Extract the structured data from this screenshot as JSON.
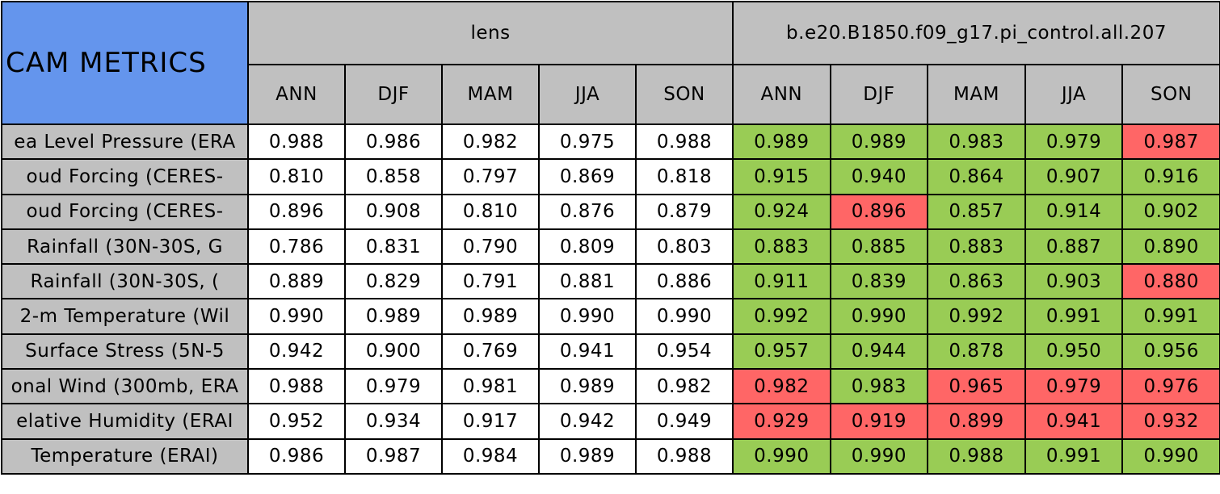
{
  "table": {
    "corner": "CAM METRICS",
    "groups": [
      "lens",
      "b.e20.B1850.f09_g17.pi_control.all.207"
    ],
    "seasons": [
      [
        "ANN",
        "DJF",
        "MAM",
        "JJA",
        "SON"
      ],
      [
        "ANN",
        "DJF",
        "MAM",
        "JJA",
        "SON"
      ]
    ],
    "colors": {
      "header": "#c0c0c0",
      "corner": "#6495ed",
      "label": "#c0c0c0",
      "plain": "#ffffff",
      "good": "#99cc55",
      "bad": "#ff6666"
    },
    "rows": [
      {
        "label": "ea Level Pressure (ERA",
        "cells": [
          "0.988",
          "0.986",
          "0.982",
          "0.975",
          "0.988",
          "0.989",
          "0.989",
          "0.983",
          "0.979",
          "0.987"
        ],
        "status": [
          "plain",
          "plain",
          "plain",
          "plain",
          "plain",
          "good",
          "good",
          "good",
          "good",
          "bad"
        ]
      },
      {
        "label": "oud Forcing (CERES-",
        "cells": [
          "0.810",
          "0.858",
          "0.797",
          "0.869",
          "0.818",
          "0.915",
          "0.940",
          "0.864",
          "0.907",
          "0.916"
        ],
        "status": [
          "plain",
          "plain",
          "plain",
          "plain",
          "plain",
          "good",
          "good",
          "good",
          "good",
          "good"
        ]
      },
      {
        "label": "oud Forcing (CERES-",
        "cells": [
          "0.896",
          "0.908",
          "0.810",
          "0.876",
          "0.879",
          "0.924",
          "0.896",
          "0.857",
          "0.914",
          "0.902"
        ],
        "status": [
          "plain",
          "plain",
          "plain",
          "plain",
          "plain",
          "good",
          "bad",
          "good",
          "good",
          "good"
        ]
      },
      {
        "label": "Rainfall (30N-30S, G",
        "cells": [
          "0.786",
          "0.831",
          "0.790",
          "0.809",
          "0.803",
          "0.883",
          "0.885",
          "0.883",
          "0.887",
          "0.890"
        ],
        "status": [
          "plain",
          "plain",
          "plain",
          "plain",
          "plain",
          "good",
          "good",
          "good",
          "good",
          "good"
        ]
      },
      {
        "label": "Rainfall (30N-30S, (",
        "cells": [
          "0.889",
          "0.829",
          "0.791",
          "0.881",
          "0.886",
          "0.911",
          "0.839",
          "0.863",
          "0.903",
          "0.880"
        ],
        "status": [
          "plain",
          "plain",
          "plain",
          "plain",
          "plain",
          "good",
          "good",
          "good",
          "good",
          "bad"
        ]
      },
      {
        "label": "2-m Temperature (Wil",
        "cells": [
          "0.990",
          "0.989",
          "0.989",
          "0.990",
          "0.990",
          "0.992",
          "0.990",
          "0.992",
          "0.991",
          "0.991"
        ],
        "status": [
          "plain",
          "plain",
          "plain",
          "plain",
          "plain",
          "good",
          "good",
          "good",
          "good",
          "good"
        ]
      },
      {
        "label": "Surface Stress (5N-5",
        "cells": [
          "0.942",
          "0.900",
          "0.769",
          "0.941",
          "0.954",
          "0.957",
          "0.944",
          "0.878",
          "0.950",
          "0.956"
        ],
        "status": [
          "plain",
          "plain",
          "plain",
          "plain",
          "plain",
          "good",
          "good",
          "good",
          "good",
          "good"
        ]
      },
      {
        "label": "onal Wind (300mb, ERA",
        "cells": [
          "0.988",
          "0.979",
          "0.981",
          "0.989",
          "0.982",
          "0.982",
          "0.983",
          "0.965",
          "0.979",
          "0.976"
        ],
        "status": [
          "plain",
          "plain",
          "plain",
          "plain",
          "plain",
          "bad",
          "good",
          "bad",
          "bad",
          "bad"
        ]
      },
      {
        "label": "elative Humidity (ERAI",
        "cells": [
          "0.952",
          "0.934",
          "0.917",
          "0.942",
          "0.949",
          "0.929",
          "0.919",
          "0.899",
          "0.941",
          "0.932"
        ],
        "status": [
          "plain",
          "plain",
          "plain",
          "plain",
          "plain",
          "bad",
          "bad",
          "bad",
          "bad",
          "bad"
        ]
      },
      {
        "label": "Temperature (ERAI)",
        "cells": [
          "0.986",
          "0.987",
          "0.984",
          "0.989",
          "0.988",
          "0.990",
          "0.990",
          "0.988",
          "0.991",
          "0.990"
        ],
        "status": [
          "plain",
          "plain",
          "plain",
          "plain",
          "plain",
          "good",
          "good",
          "good",
          "good",
          "good"
        ]
      }
    ]
  }
}
